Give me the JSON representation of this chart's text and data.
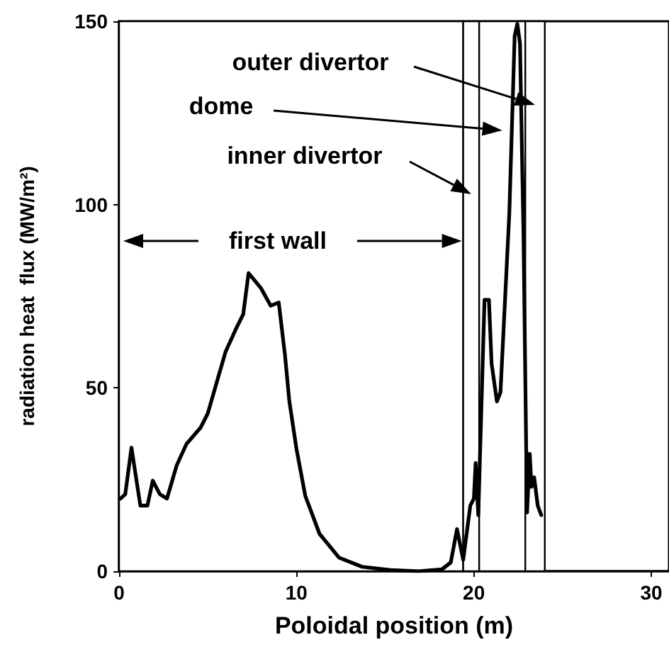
{
  "chart_data": {
    "type": "line",
    "xlabel": "Poloidal position (m)",
    "ylabel": "radiation heat  flux (MW/m²)",
    "xlim": [
      0,
      31
    ],
    "xticks": [
      0,
      10,
      20,
      30
    ],
    "ylim": [
      0,
      150
    ],
    "yticks": [
      0,
      50,
      100,
      150
    ],
    "grid": false,
    "marker": "none",
    "line_style": "solid",
    "series": [
      {
        "color": "#000000",
        "x": [
          0.08,
          0.35,
          0.7,
          1.2,
          1.6,
          1.9,
          2.3,
          2.7,
          3.25,
          3.8,
          4.6,
          5.0,
          5.5,
          6.0,
          6.6,
          7.0,
          7.3,
          8.0,
          8.55,
          9.0,
          9.35,
          9.6,
          10.0,
          10.5,
          11.3,
          12.4,
          13.7,
          15.3,
          16.9,
          18.2,
          18.7,
          19.05,
          19.4,
          19.8,
          20.0,
          20.1,
          20.25,
          20.6,
          20.85,
          21.0,
          21.3,
          21.5,
          22.0,
          22.3,
          22.45,
          22.6,
          22.8,
          22.95,
          23.0,
          23.15,
          23.25,
          23.4,
          23.6,
          23.8
        ],
        "values": [
          19.8,
          21,
          33.7,
          17.9,
          17.9,
          24.7,
          21,
          19.8,
          28.9,
          34.7,
          39.2,
          43,
          51.4,
          59.8,
          66.2,
          70.1,
          81.3,
          77.2,
          72.4,
          73.3,
          59.1,
          46.3,
          33.4,
          20.5,
          10.2,
          3.7,
          1.2,
          0.3,
          0,
          0.5,
          2.4,
          11.5,
          3.1,
          17.9,
          19.8,
          29.5,
          15.3,
          74,
          74,
          56.6,
          46.3,
          48.8,
          97.8,
          146,
          149.3,
          144,
          91.4,
          33.4,
          16,
          32,
          23,
          25.6,
          17.9,
          15.3
        ]
      }
    ],
    "bands": [
      {
        "axis": "x",
        "from": 0,
        "to": 19.4,
        "color": "#ffffff",
        "label": "first wall"
      },
      {
        "axis": "x",
        "from": 19.4,
        "to": 20.3,
        "color": "#ffffff",
        "label": "inner divertor"
      },
      {
        "axis": "x",
        "from": 20.3,
        "to": 22.9,
        "color": "#ffffff",
        "label": "dome"
      },
      {
        "axis": "x",
        "from": 22.9,
        "to": 24.0,
        "color": "#ffffff",
        "label": "outer divertor"
      }
    ]
  }
}
